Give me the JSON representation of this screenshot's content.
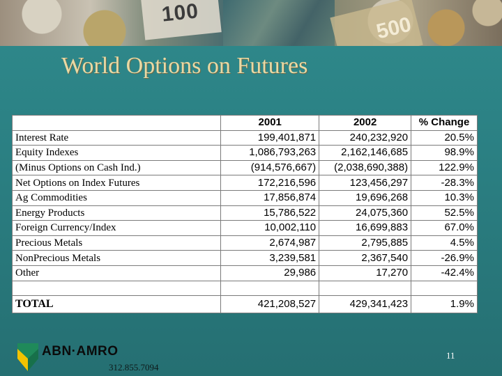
{
  "banner": {
    "note_left": "100",
    "note_right": "500"
  },
  "slide": {
    "title": "World Options on Futures"
  },
  "table": {
    "headers": [
      "",
      "2001",
      "2002",
      "% Change"
    ],
    "rows": [
      {
        "label": "Interest Rate",
        "y2001": "199,401,871",
        "y2002": "240,232,920",
        "change": "20.5%"
      },
      {
        "label": "Equity Indexes",
        "y2001": "1,086,793,263",
        "y2002": "2,162,146,685",
        "change": "98.9%"
      },
      {
        "label": "(Minus Options on Cash Ind.)",
        "y2001": "(914,576,667)",
        "y2002": "(2,038,690,388)",
        "change": "122.9%"
      },
      {
        "label": "Net Options on Index Futures",
        "y2001": "172,216,596",
        "y2002": "123,456,297",
        "change": "-28.3%"
      },
      {
        "label": "Ag Commodities",
        "y2001": "17,856,874",
        "y2002": "19,696,268",
        "change": "10.3%"
      },
      {
        "label": "Energy Products",
        "y2001": "15,786,522",
        "y2002": "24,075,360",
        "change": "52.5%"
      },
      {
        "label": "Foreign Currency/Index",
        "y2001": "10,002,110",
        "y2002": "16,699,883",
        "change": "67.0%"
      },
      {
        "label": "Precious Metals",
        "y2001": "2,674,987",
        "y2002": "2,795,885",
        "change": "4.5%"
      },
      {
        "label": "NonPrecious Metals",
        "y2001": "3,239,581",
        "y2002": "2,367,540",
        "change": "-26.9%"
      },
      {
        "label": "Other",
        "y2001": "29,986",
        "y2002": "17,270",
        "change": "-42.4%"
      }
    ],
    "total": {
      "label": "TOTAL",
      "y2001": "421,208,527",
      "y2002": "429,341,423",
      "change": "1.9%"
    }
  },
  "footer": {
    "brand": "ABN·AMRO",
    "phone": "312.855.7094",
    "page_number": "11",
    "logo_colors": {
      "green": "#1f8a5a",
      "yellow": "#f2c300"
    }
  }
}
